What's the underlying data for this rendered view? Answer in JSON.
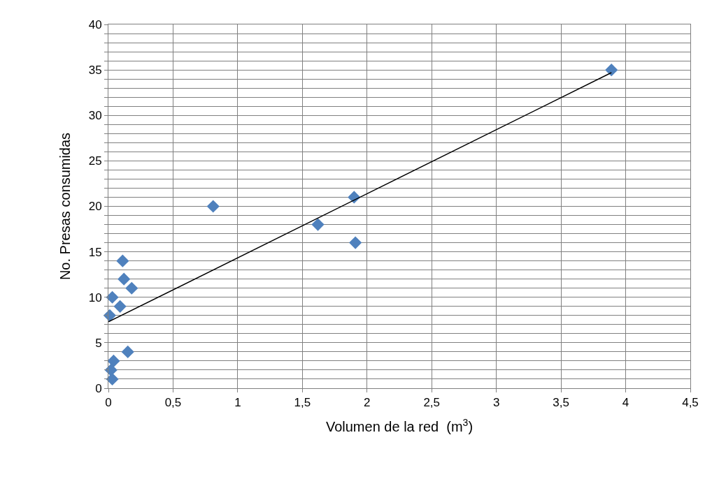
{
  "chart_data": {
    "type": "scatter",
    "xlabel": "Volumen de la red  (m$^{3}$)",
    "ylabel": "No. Presas consumidas",
    "grid": true,
    "marker": "diamond",
    "xlim": [
      0,
      4.5
    ],
    "xticks": [
      {
        "value": 0,
        "label": "0"
      },
      {
        "value": 0.5,
        "label": "0,5"
      },
      {
        "value": 1,
        "label": "1"
      },
      {
        "value": 1.5,
        "label": "1,5"
      },
      {
        "value": 2,
        "label": "2"
      },
      {
        "value": 2.5,
        "label": "2,5"
      },
      {
        "value": 3,
        "label": "3"
      },
      {
        "value": 3.5,
        "label": "3,5"
      },
      {
        "value": 4,
        "label": "4"
      },
      {
        "value": 4.5,
        "label": "4,5"
      }
    ],
    "ylim": [
      0,
      40
    ],
    "yticks": [
      0,
      {
        "value": 1,
        "label": null
      },
      {
        "value": 2,
        "label": null
      },
      {
        "value": 3,
        "label": null
      },
      {
        "value": 4,
        "label": null
      },
      5,
      {
        "value": 6,
        "label": null
      },
      {
        "value": 7,
        "label": null
      },
      {
        "value": 8,
        "label": null
      },
      {
        "value": 9,
        "label": null
      },
      10,
      {
        "value": 11,
        "label": null
      },
      {
        "value": 12,
        "label": null
      },
      {
        "value": 13,
        "label": null
      },
      {
        "value": 14,
        "label": null
      },
      15,
      {
        "value": 16,
        "label": null
      },
      {
        "value": 17,
        "label": null
      },
      {
        "value": 18,
        "label": null
      },
      {
        "value": 19,
        "label": null
      },
      20,
      {
        "value": 21,
        "label": null
      },
      {
        "value": 22,
        "label": null
      },
      {
        "value": 23,
        "label": null
      },
      {
        "value": 24,
        "label": null
      },
      25,
      {
        "value": 26,
        "label": null
      },
      {
        "value": 27,
        "label": null
      },
      {
        "value": 28,
        "label": null
      },
      {
        "value": 29,
        "label": null
      },
      30,
      {
        "value": 31,
        "label": null
      },
      {
        "value": 32,
        "label": null
      },
      {
        "value": 33,
        "label": null
      },
      {
        "value": 34,
        "label": null
      },
      35,
      {
        "value": 36,
        "label": null
      },
      {
        "value": 37,
        "label": null
      },
      {
        "value": 38,
        "label": null
      },
      {
        "value": 39,
        "label": null
      },
      40
    ],
    "series": [
      {
        "color": "#4f81bd",
        "x": [
          0.01,
          0.03,
          0.04,
          0.02,
          0.03,
          0.09,
          0.11,
          0.12,
          0.18,
          0.15,
          0.81,
          1.62,
          1.9,
          1.91,
          3.89
        ],
        "values": [
          8,
          10,
          3,
          2,
          1,
          9,
          14,
          12,
          11,
          4,
          20,
          18,
          21,
          16,
          35
        ]
      },
      {
        "type": "line",
        "color": "#000000",
        "marker": "none",
        "x": [
          0,
          3.89
        ],
        "values": [
          7.3,
          34.7
        ]
      }
    ]
  }
}
